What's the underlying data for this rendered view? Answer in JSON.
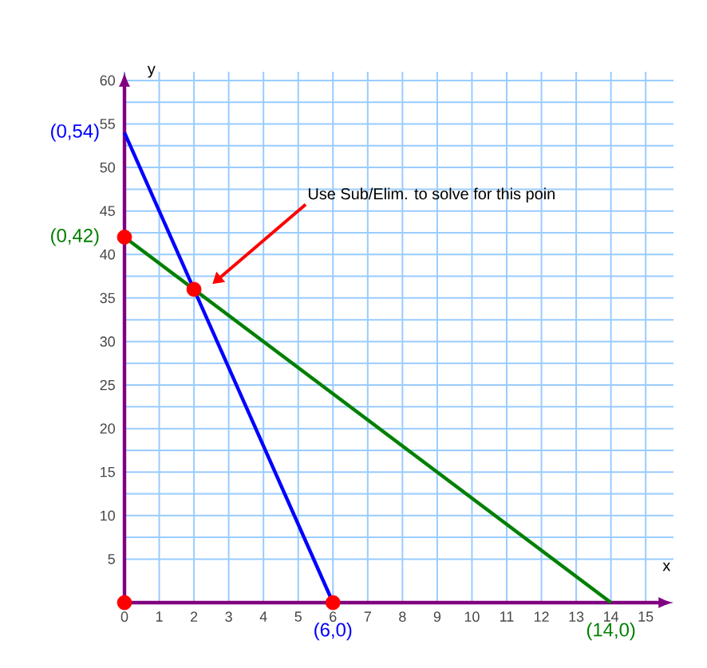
{
  "chart_data": {
    "type": "line",
    "xlabel": "x",
    "ylabel": "y",
    "xlim": [
      0,
      15.8
    ],
    "ylim": [
      0,
      61
    ],
    "xticks": [
      0,
      1,
      2,
      3,
      4,
      5,
      6,
      7,
      8,
      9,
      10,
      11,
      12,
      13,
      14,
      15
    ],
    "yticks": [
      5,
      10,
      15,
      20,
      25,
      30,
      35,
      40,
      45,
      50,
      55,
      60
    ],
    "grid": true,
    "marker": "none",
    "series": [
      {
        "type": "line",
        "color": "#0000ff",
        "x": [
          0,
          6
        ],
        "values": [
          54,
          0
        ]
      },
      {
        "type": "line",
        "color": "#008000",
        "x": [
          0,
          14
        ],
        "values": [
          42,
          0
        ]
      },
      {
        "type": "scatter",
        "color": "#ff0000",
        "marker": "circle",
        "x": [
          0,
          0,
          2,
          6
        ],
        "values": [
          0,
          42,
          36,
          0
        ]
      }
    ],
    "annotations": [
      "Use Sub/Elim. to solve for this poin",
      {
        "text": "(0,54)",
        "x": 0,
        "y": 54
      },
      {
        "text": "(6,0)",
        "x": 6,
        "y": 0
      },
      {
        "text": "(0,42)",
        "x": 0,
        "y": 42
      },
      {
        "text": "(14,0)",
        "x": 14,
        "y": 0
      }
    ]
  }
}
